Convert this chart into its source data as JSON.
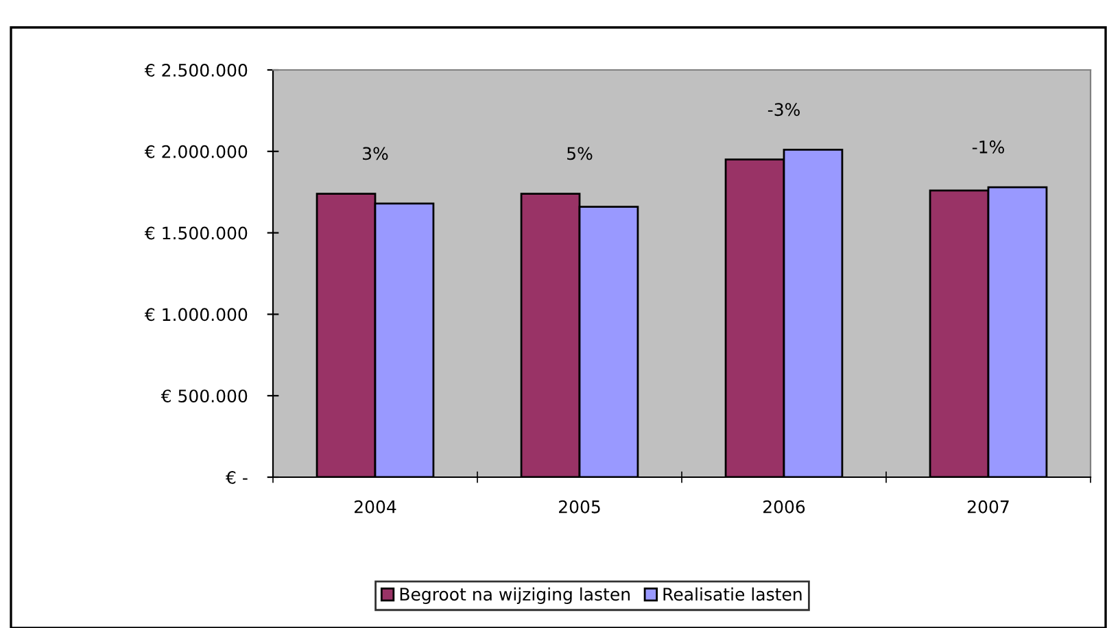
{
  "chart_data": {
    "type": "bar",
    "categories": [
      "2004",
      "2005",
      "2006",
      "2007"
    ],
    "series": [
      {
        "name": "Begroot na wijziging lasten",
        "color": "#993366",
        "values": [
          1740000,
          1740000,
          1950000,
          1760000
        ]
      },
      {
        "name": "Realisatie lasten",
        "color": "#9999ff",
        "values": [
          1680000,
          1660000,
          2010000,
          1780000
        ]
      }
    ],
    "ylim": [
      0,
      2500000
    ],
    "yticks": [
      {
        "value": 0,
        "label": "€ -"
      },
      {
        "value": 500000,
        "label": "€ 500.000"
      },
      {
        "value": 1000000,
        "label": "€ 1.000.000"
      },
      {
        "value": 1500000,
        "label": "€ 1.500.000"
      },
      {
        "value": 2000000,
        "label": "€ 2.000.000"
      },
      {
        "value": 2500000,
        "label": "€ 2.500.000"
      }
    ],
    "annotations": [
      "3%",
      "5%",
      "-3%",
      "-1%"
    ],
    "grid": false,
    "legend": "bottom"
  }
}
